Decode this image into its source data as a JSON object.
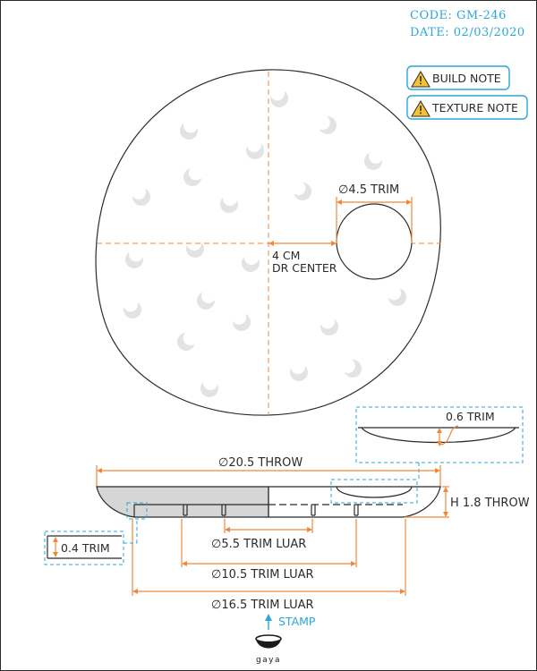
{
  "header": {
    "code": "CODE: GM-246",
    "date": "DATE: 02/03/2020"
  },
  "notes": [
    {
      "label": "BUILD NOTE",
      "icon": "warning-icon"
    },
    {
      "label": "TEXTURE NOTE",
      "icon": "warning-icon"
    }
  ],
  "top_view": {
    "hole_label": "∅4.5 TRIM",
    "offset_line1": "4 CM",
    "offset_line2": "DR CENTER"
  },
  "side_view": {
    "throw_diameter": "∅20.5 THROW",
    "height": "H 1.8 THROW",
    "trim_luar_small": "∅5.5 TRIM LUAR",
    "trim_luar_mid": "∅10.5 TRIM LUAR",
    "trim_luar_large": "∅16.5 TRIM LUAR",
    "detail_top": "0.6 TRIM",
    "detail_left": "0.4 TRIM"
  },
  "footer": {
    "stamp_label": "STAMP",
    "brand": "gaya"
  },
  "colors": {
    "accent_blue": "#2aa7d6",
    "dimension_orange": "#f0883a",
    "warning_yellow": "#f6c233",
    "line": "#2b2b2b",
    "fill_gray": "#d6d6d6"
  }
}
